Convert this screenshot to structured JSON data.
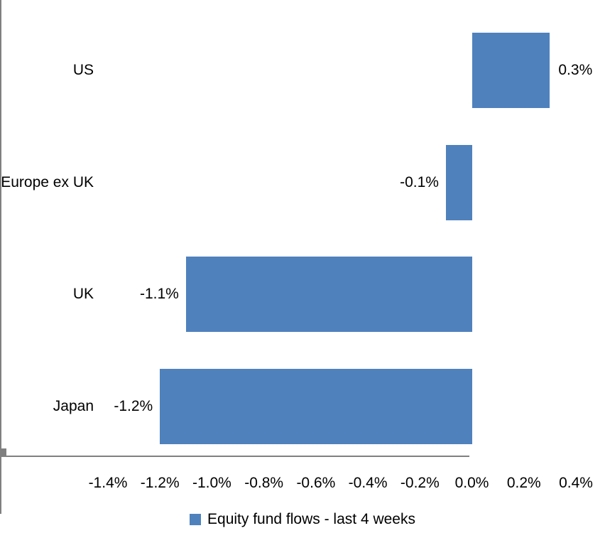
{
  "chart_data": {
    "type": "bar",
    "orientation": "horizontal",
    "categories": [
      "US",
      "Europe ex UK",
      "UK",
      "Japan"
    ],
    "series": [
      {
        "name": "Equity fund flows - last 4 weeks",
        "values": [
          0.3,
          -0.1,
          -1.1,
          -1.2
        ],
        "data_labels": [
          "0.3%",
          "-0.1%",
          "-1.1%",
          "-1.2%"
        ],
        "color": "#4F81BD"
      }
    ],
    "xlim": [
      -1.4,
      0.4
    ],
    "x_ticks": [
      -1.4,
      -1.2,
      -1.0,
      -0.8,
      -0.6,
      -0.4,
      -0.2,
      0.0,
      0.2,
      0.4
    ],
    "x_tick_labels": [
      "-1.4%",
      "-1.2%",
      "-1.0%",
      "-0.8%",
      "-0.6%",
      "-0.4%",
      "-0.2%",
      "0.0%",
      "0.2%",
      "0.4%"
    ],
    "xlabel": "",
    "ylabel": "",
    "grid": false,
    "legend_position": "bottom",
    "axis_color": "#808080",
    "text_color": "#000000",
    "background_color": "#FFFFFF"
  }
}
